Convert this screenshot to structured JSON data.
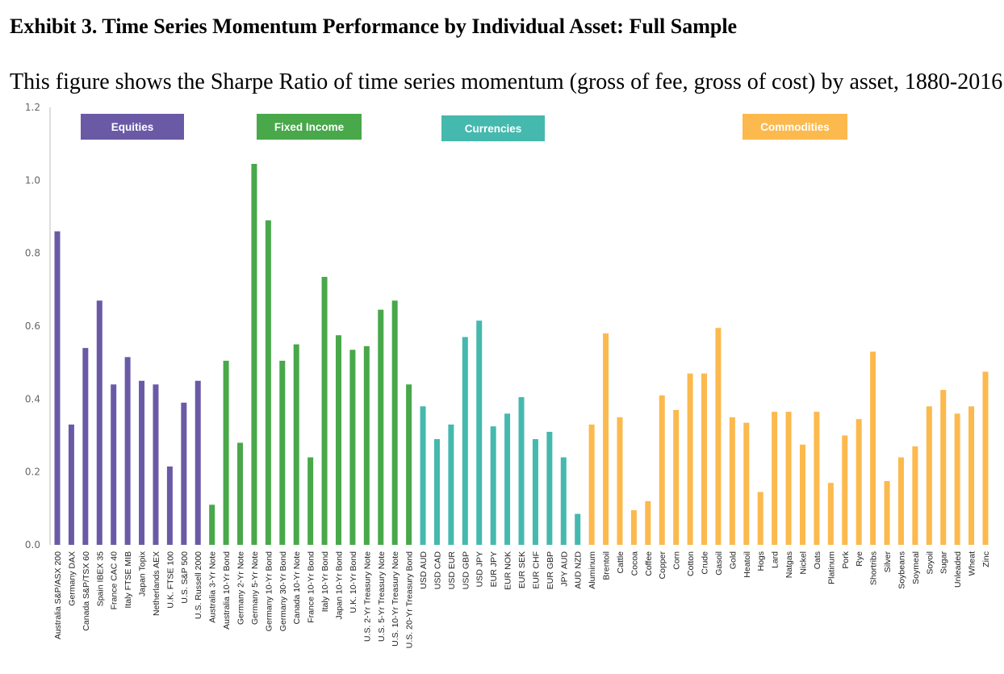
{
  "title": "Exhibit 3. Time Series Momentum Performance by Individual Asset: Full Sample",
  "subtitle": "This figure shows the Sharpe Ratio of time series momentum (gross of fee, gross of cost) by asset, 1880-2016.",
  "colors": {
    "Equities": "#6a5aa6",
    "Fixed Income": "#48a84a",
    "Currencies": "#45b9ae",
    "Commodities": "#fcb94d"
  },
  "chart_data": {
    "type": "bar",
    "title": "",
    "xlabel": "",
    "ylabel": "",
    "ylim": [
      0,
      1.2
    ],
    "yticks": [
      "0.0",
      "0.2",
      "0.4",
      "0.6",
      "0.8",
      "1.0",
      "1.2"
    ],
    "grid": false,
    "legend": [
      "Equities",
      "Fixed Income",
      "Currencies",
      "Commodities"
    ],
    "categories": [
      "Australia S&P/ASX 200",
      "Germany DAX",
      "Canada S&P/TSX 60",
      "Spain IBEX 35",
      "France CAC 40",
      "Italy FTSE MIB",
      "Japan Topix",
      "Netherlands AEX",
      "U.K. FTSE 100",
      "U.S. S&P 500",
      "U.S. Russell 2000",
      "Australia 3-Yr Note",
      "Australia 10-Yr Bond",
      "Germany 2-Yr Note",
      "Germany 5-Yr Note",
      "Germany 10-Yr Bond",
      "Germany 30-Yr Bond",
      "Canada 10-Yr Note",
      "France 10-Yr Bond",
      "Italy 10-Yr Bond",
      "Japan 10-Yr Bond",
      "U.K. 10-Yr Bond",
      "U.S. 2-Yr Treasury Note",
      "U.S. 5-Yr Treasury Note",
      "U.S. 10-Yr Treasury Note",
      "U.S. 20-Yr Treasury Bond",
      "USD AUD",
      "USD CAD",
      "USD EUR",
      "USD GBP",
      "USD JPY",
      "EUR JPY",
      "EUR NOK",
      "EUR SEK",
      "EUR CHF",
      "EUR GBP",
      "JPY AUD",
      "AUD NZD",
      "Aluminum",
      "Brentoil",
      "Cattle",
      "Cocoa",
      "Coffee",
      "Copper",
      "Corn",
      "Cotton",
      "Crude",
      "Gasoil",
      "Gold",
      "Heatoil",
      "Hogs",
      "Lard",
      "Natgas",
      "Nickel",
      "Oats",
      "Platinum",
      "Pork",
      "Rye",
      "Shortribs",
      "Silver",
      "Soybeans",
      "Soymeal",
      "Soyoil",
      "Sugar",
      "Unleaded",
      "Wheat",
      "Zinc"
    ],
    "groups": [
      "Equities",
      "Equities",
      "Equities",
      "Equities",
      "Equities",
      "Equities",
      "Equities",
      "Equities",
      "Equities",
      "Equities",
      "Equities",
      "Fixed Income",
      "Fixed Income",
      "Fixed Income",
      "Fixed Income",
      "Fixed Income",
      "Fixed Income",
      "Fixed Income",
      "Fixed Income",
      "Fixed Income",
      "Fixed Income",
      "Fixed Income",
      "Fixed Income",
      "Fixed Income",
      "Fixed Income",
      "Fixed Income",
      "Currencies",
      "Currencies",
      "Currencies",
      "Currencies",
      "Currencies",
      "Currencies",
      "Currencies",
      "Currencies",
      "Currencies",
      "Currencies",
      "Currencies",
      "Currencies",
      "Commodities",
      "Commodities",
      "Commodities",
      "Commodities",
      "Commodities",
      "Commodities",
      "Commodities",
      "Commodities",
      "Commodities",
      "Commodities",
      "Commodities",
      "Commodities",
      "Commodities",
      "Commodities",
      "Commodities",
      "Commodities",
      "Commodities",
      "Commodities",
      "Commodities",
      "Commodities",
      "Commodities",
      "Commodities",
      "Commodities",
      "Commodities",
      "Commodities",
      "Commodities",
      "Commodities",
      "Commodities",
      "Commodities"
    ],
    "values": [
      0.86,
      0.33,
      0.54,
      0.67,
      0.44,
      0.515,
      0.45,
      0.44,
      0.215,
      0.39,
      0.45,
      0.11,
      0.505,
      0.28,
      1.045,
      0.89,
      0.505,
      0.55,
      0.24,
      0.735,
      0.575,
      0.535,
      0.545,
      0.645,
      0.67,
      0.44,
      0.38,
      0.29,
      0.33,
      0.57,
      0.615,
      0.325,
      0.36,
      0.405,
      0.29,
      0.31,
      0.24,
      0.085,
      0.33,
      0.58,
      0.35,
      0.095,
      0.12,
      0.41,
      0.37,
      0.47,
      0.47,
      0.595,
      0.35,
      0.335,
      0.145,
      0.365,
      0.365,
      0.275,
      0.365,
      0.17,
      0.3,
      0.345,
      0.53,
      0.175,
      0.24,
      0.27,
      0.38,
      0.425,
      0.36,
      0.38,
      0.475
    ]
  }
}
